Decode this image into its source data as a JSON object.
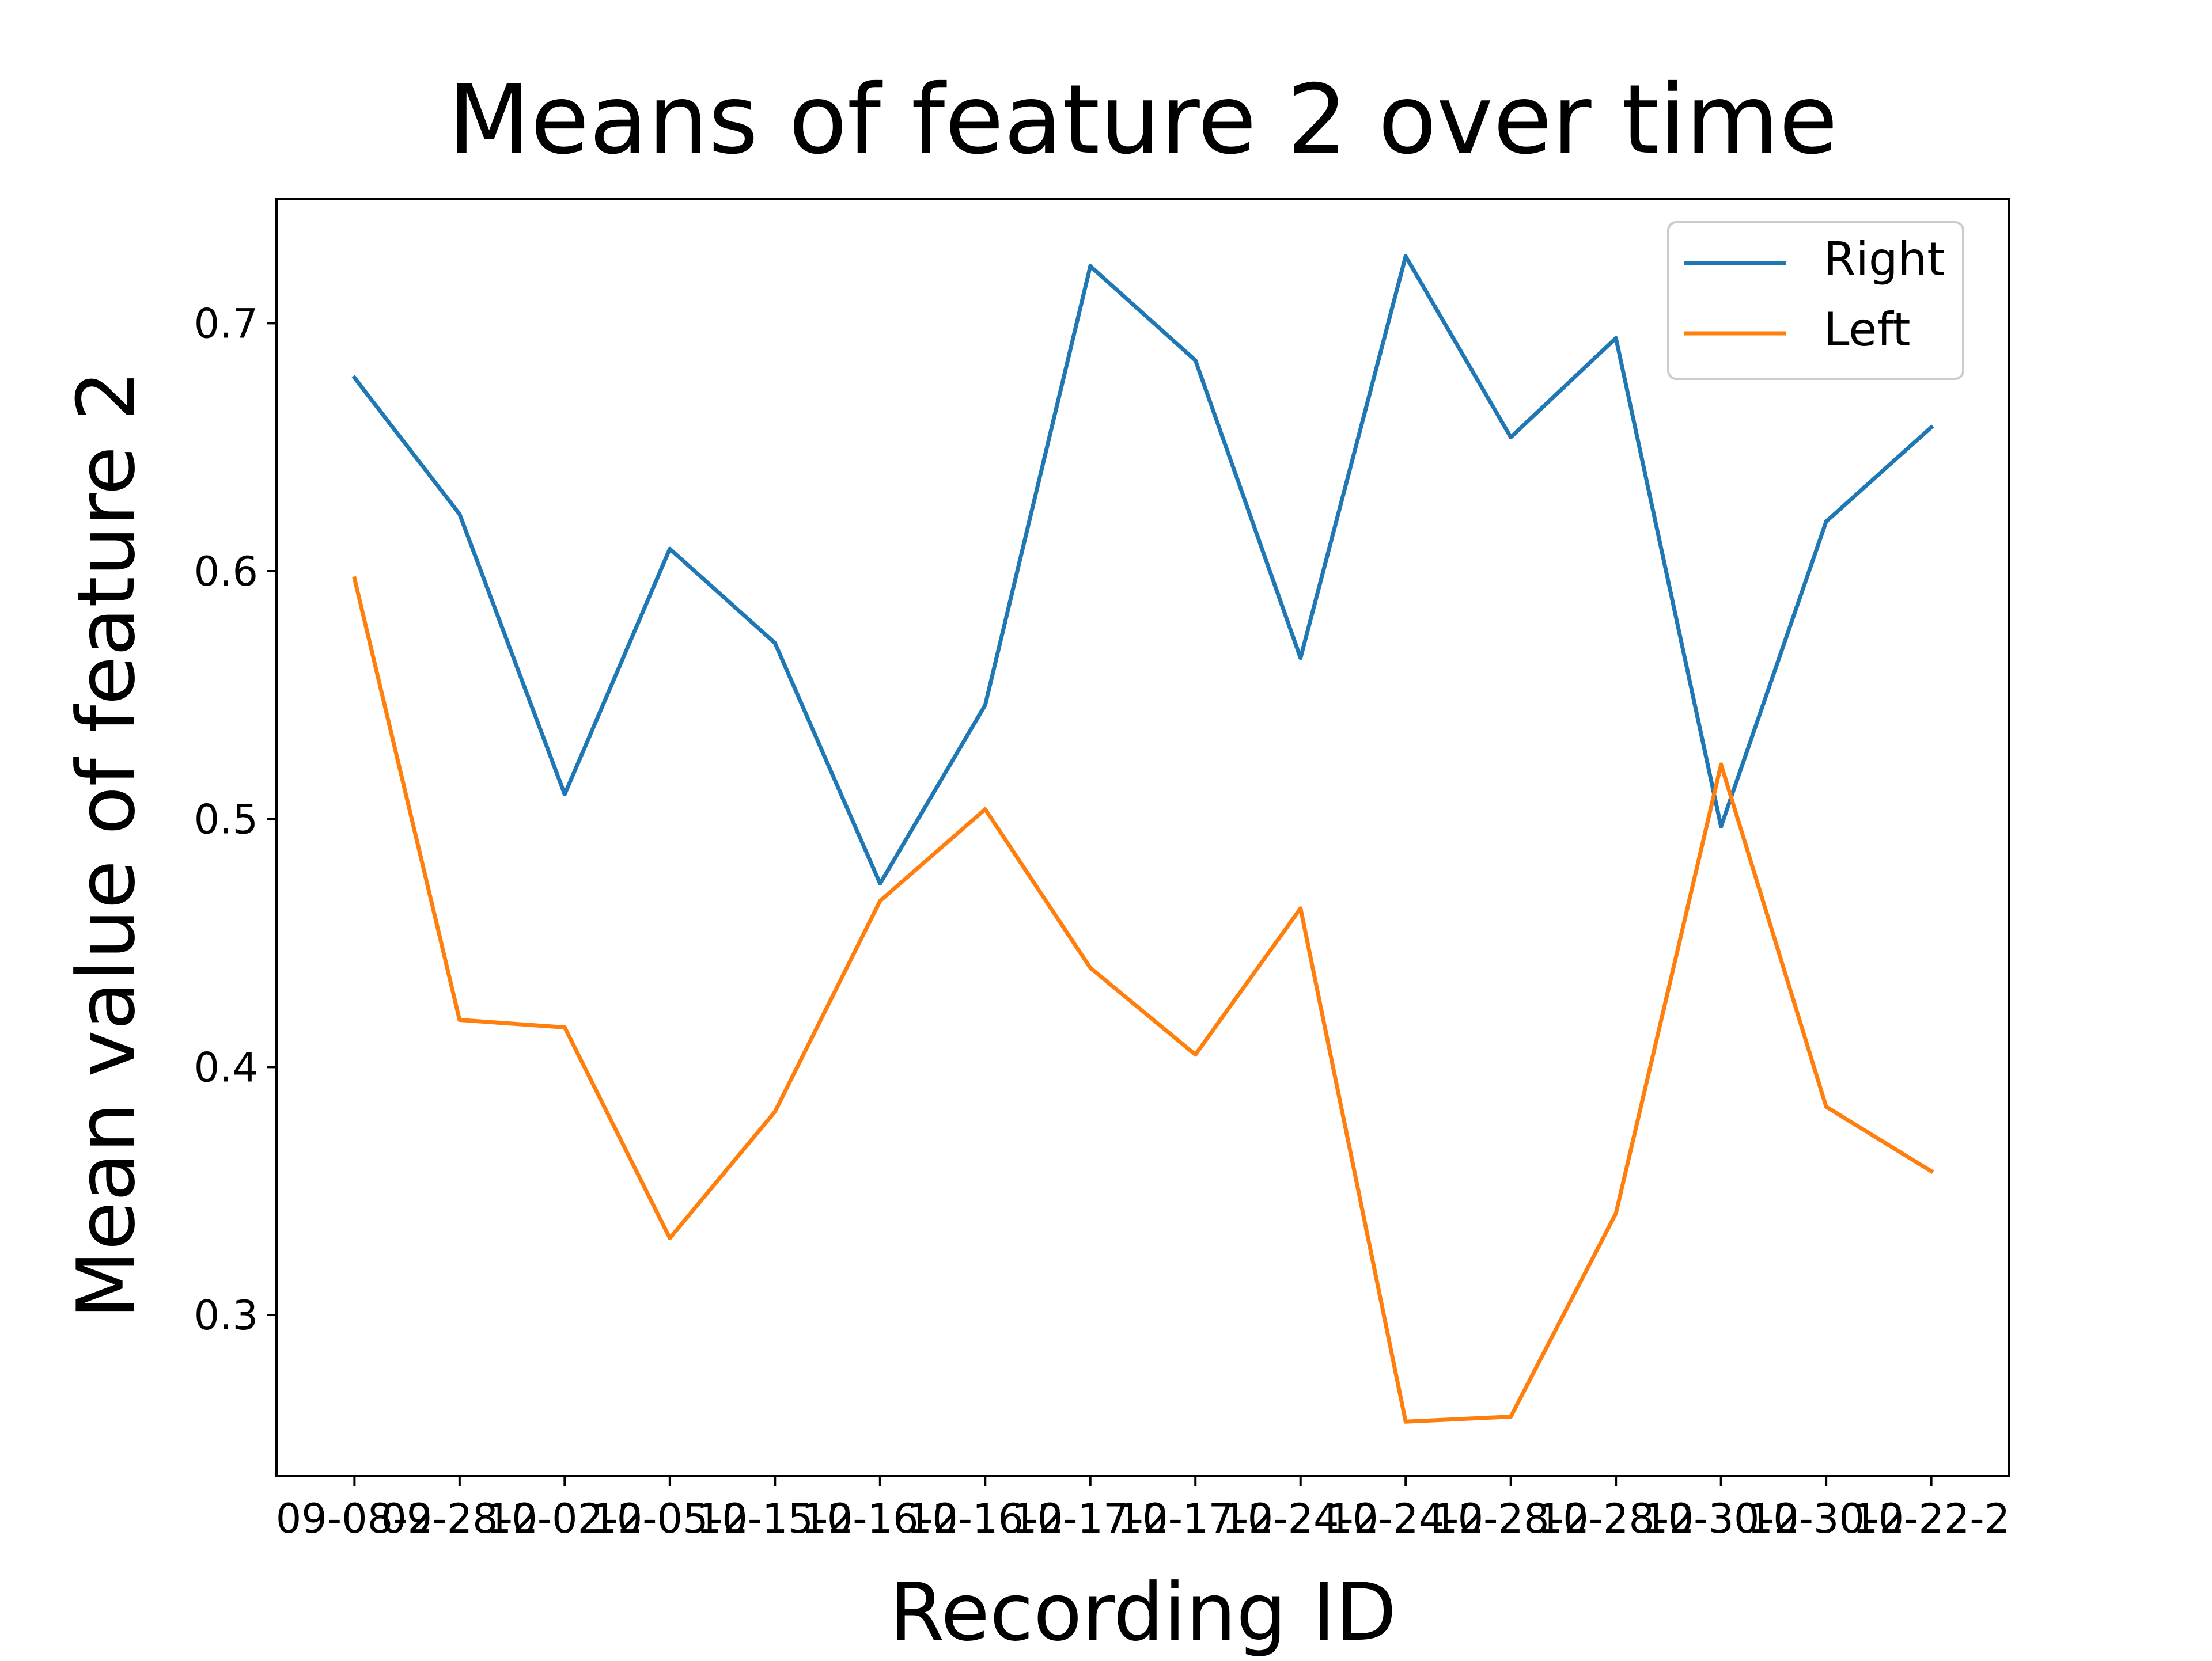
{
  "chart_data": {
    "type": "line",
    "title": "Means of feature 2 over time",
    "xlabel": "Recording ID",
    "ylabel": "Mean value of feature 2",
    "x_tick_labels": [
      "09-08-2",
      "09-28-2",
      "10-02-2",
      "10-05-2",
      "10-15-2",
      "10-16-2",
      "10-16-2",
      "10-17-2",
      "10-17-2",
      "10-24-2",
      "10-24-2",
      "10-28-2",
      "10-28-2",
      "10-30-2",
      "10-30-2",
      "10-22-2"
    ],
    "ylim": [
      0.235,
      0.75
    ],
    "y_ticks": [
      0.3,
      0.4,
      0.5,
      0.6,
      0.7
    ],
    "y_tick_labels": [
      "0.3",
      "0.4",
      "0.5",
      "0.6",
      "0.7"
    ],
    "grid": false,
    "legend_position": "top-right",
    "series": [
      {
        "name": "Right",
        "color": "#1f77b4",
        "values": [
          0.678,
          0.623,
          0.51,
          0.609,
          0.571,
          0.474,
          0.546,
          0.723,
          0.685,
          0.565,
          0.727,
          0.654,
          0.694,
          0.497,
          0.62,
          0.658
        ]
      },
      {
        "name": "Left",
        "color": "#ff7f0e",
        "values": [
          0.597,
          0.419,
          0.416,
          0.331,
          0.382,
          0.467,
          0.504,
          0.44,
          0.405,
          0.464,
          0.257,
          0.259,
          0.341,
          0.522,
          0.384,
          0.358
        ]
      }
    ]
  }
}
